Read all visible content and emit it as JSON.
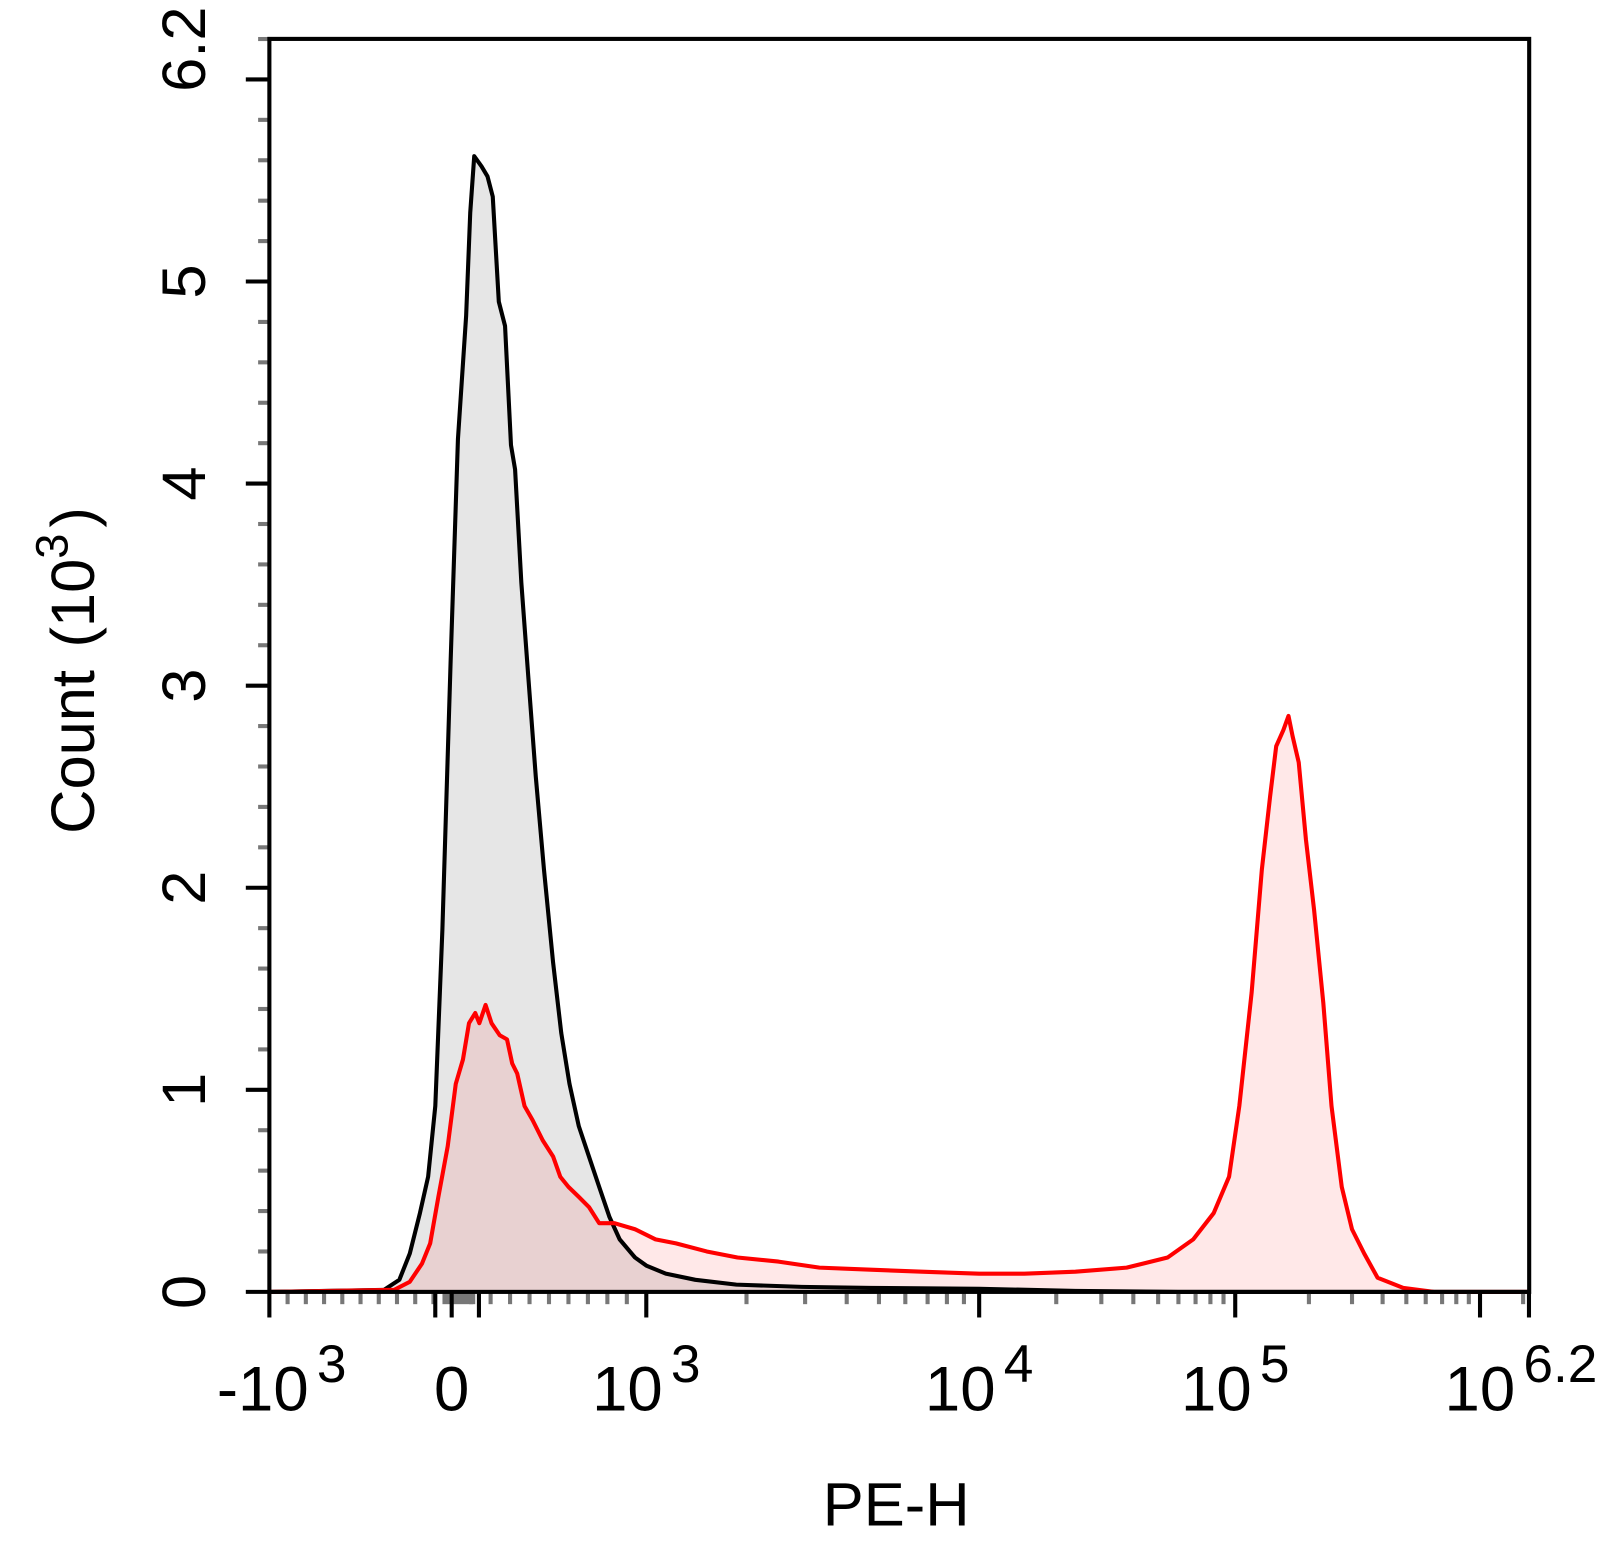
{
  "chart_data": {
    "type": "area",
    "title": "",
    "xlabel": "PE-H",
    "ylabel": "Count",
    "ylabel_unit": {
      "base": "(10",
      "exp": "3",
      "close": ")"
    },
    "x_scale": "biexponential",
    "xlim": [
      -1000,
      1584893
    ],
    "ylim": [
      0,
      6.2
    ],
    "grid": false,
    "legend": "none",
    "x_ticks": [
      {
        "value": -1000,
        "base": "-10",
        "exp": "3"
      },
      {
        "value": 0,
        "base": "0",
        "exp": ""
      },
      {
        "value": 1000,
        "base": "10",
        "exp": "3"
      },
      {
        "value": 10000,
        "base": "10",
        "exp": "4"
      },
      {
        "value": 100000,
        "base": "10",
        "exp": "5"
      },
      {
        "value": 1584893,
        "base": "10",
        "exp": "6.2"
      }
    ],
    "y_ticks": [
      {
        "value": 0,
        "label": "0"
      },
      {
        "value": 1,
        "label": "1"
      },
      {
        "value": 2,
        "label": "2"
      },
      {
        "value": 3,
        "label": "3"
      },
      {
        "value": 4,
        "label": "4"
      },
      {
        "value": 5,
        "label": "5"
      },
      {
        "value": 6.2,
        "label": "6.2"
      }
    ],
    "series": [
      {
        "line_color": "#000000",
        "fill_color": "#e6e6e6",
        "x": [
          -1000,
          -371,
          -287,
          -230,
          -174,
          -129,
          -90,
          -51,
          -6,
          32,
          74,
          95,
          116,
          153,
          184,
          211,
          242,
          274,
          305,
          326,
          358,
          395,
          432,
          474,
          521,
          563,
          605,
          653,
          705,
          758,
          811,
          863,
          942,
          1000,
          1144,
          1404,
          1864,
          2934,
          4717,
          10000,
          23770,
          59700,
          1584893
        ],
        "y": [
          0,
          0.01,
          0.06,
          0.19,
          0.39,
          0.57,
          0.92,
          1.79,
          3.11,
          4.22,
          4.83,
          5.34,
          5.62,
          5.57,
          5.52,
          5.42,
          4.9,
          4.78,
          4.19,
          4.07,
          3.51,
          3.03,
          2.55,
          2.09,
          1.63,
          1.28,
          1.03,
          0.82,
          0.67,
          0.52,
          0.37,
          0.26,
          0.17,
          0.13,
          0.09,
          0.06,
          0.036,
          0.025,
          0.02,
          0.015,
          0.005,
          0,
          0
        ]
      },
      {
        "line_color": "#ff0000",
        "fill_color": "rgba(255,0,0,0.09)",
        "x": [
          -1000,
          -315,
          -230,
          -163,
          -118,
          -73,
          -22,
          21,
          58,
          89,
          121,
          142,
          174,
          205,
          247,
          284,
          311,
          337,
          374,
          416,
          468,
          521,
          558,
          600,
          653,
          705,
          758,
          837,
          942,
          1066,
          1228,
          1519,
          1879,
          2495,
          3311,
          4720,
          6730,
          10000,
          15000,
          23770,
          37670,
          54450,
          68550,
          82400,
          94600,
          103900,
          116700,
          128500,
          138800,
          147000,
          157300,
          165100,
          171500,
          181700,
          194400,
          210000,
          229000,
          247300,
          272300,
          300000,
          336500,
          381700,
          485700,
          648600,
          1584893
        ],
        "y": [
          0,
          0.01,
          0.05,
          0.14,
          0.24,
          0.47,
          0.72,
          1.03,
          1.15,
          1.33,
          1.38,
          1.33,
          1.42,
          1.33,
          1.27,
          1.25,
          1.13,
          1.08,
          0.92,
          0.85,
          0.75,
          0.67,
          0.57,
          0.52,
          0.47,
          0.42,
          0.34,
          0.34,
          0.31,
          0.26,
          0.24,
          0.2,
          0.17,
          0.15,
          0.12,
          0.11,
          0.1,
          0.09,
          0.09,
          0.1,
          0.12,
          0.17,
          0.26,
          0.39,
          0.57,
          0.92,
          1.48,
          2.09,
          2.45,
          2.7,
          2.78,
          2.85,
          2.75,
          2.62,
          2.24,
          1.89,
          1.43,
          0.92,
          0.52,
          0.31,
          0.19,
          0.07,
          0.02,
          0,
          0
        ]
      }
    ]
  }
}
